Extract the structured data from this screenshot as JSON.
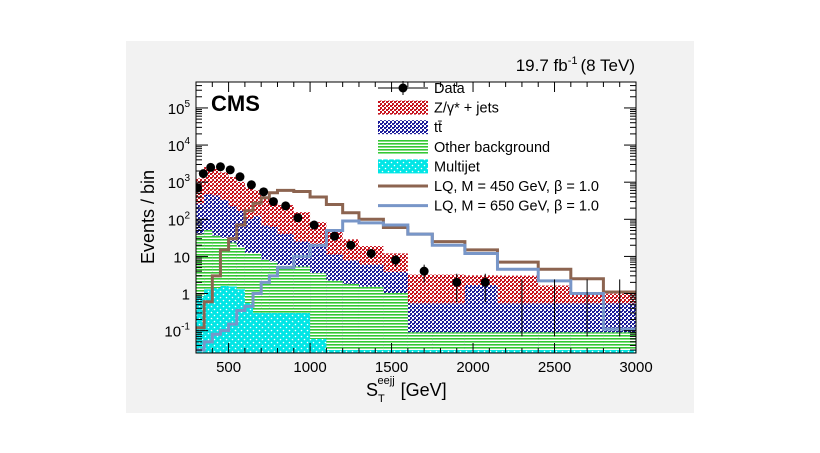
{
  "colors": {
    "zjets": "#c8141e",
    "ttbar": "#1e1e9b",
    "other": "#34c834",
    "multijet": "#00e6e6",
    "lq450": "#8c6450",
    "lq650": "#7896c8",
    "panel": "#f2f2f2"
  },
  "chart_data": {
    "type": "histogram",
    "title": "",
    "lumi_label": "19.7 fb",
    "lumi_sup": "-1",
    "energy_label": "(8 TeV)",
    "experiment": "CMS",
    "xlabel_main": "S",
    "xlabel_sub": "T",
    "xlabel_sup": "eejj",
    "xlabel_unit": "[GeV]",
    "ylabel": "Events / bin",
    "xlim": [
      300,
      3000
    ],
    "ylim": [
      0.025,
      500000
    ],
    "yscale": "log",
    "x_ticks": [
      "500",
      "1000",
      "1500",
      "2000",
      "2500",
      "3000"
    ],
    "y_ticks": [
      {
        "base": "10",
        "exp": "5"
      },
      {
        "base": "10",
        "exp": "4"
      },
      {
        "base": "10",
        "exp": "3"
      },
      {
        "base": "10",
        "exp": "2"
      },
      {
        "base": "10",
        "exp": ""
      },
      {
        "base": "1",
        "exp": ""
      },
      {
        "base": "10",
        "exp": "-1"
      }
    ],
    "bin_edges": [
      300,
      350,
      400,
      450,
      500,
      550,
      600,
      650,
      700,
      750,
      800,
      900,
      1000,
      1100,
      1200,
      1300,
      1450,
      1600,
      1750,
      1950,
      2150,
      2400,
      2600,
      2800,
      3000
    ],
    "stack": {
      "multijet": [
        0.85,
        1.3,
        1.4,
        1.6,
        1.55,
        1.3,
        0.55,
        0.3,
        0.3,
        0.3,
        0.3,
        0.3,
        0.06,
        0.03,
        0.03,
        0.03,
        0.03,
        0.03,
        0.03,
        0.03,
        0.03,
        0.03,
        0.03,
        0.03
      ],
      "other": [
        40,
        50,
        35,
        30,
        22,
        17,
        12,
        12,
        8,
        7,
        5.5,
        5,
        3.5,
        2.2,
        1.8,
        1.5,
        1.0,
        0.06,
        0.06,
        0.06,
        0.06,
        0.06,
        0.06,
        0.06
      ],
      "ttbar": [
        220,
        420,
        400,
        300,
        200,
        150,
        90,
        110,
        60,
        55,
        35,
        20,
        15,
        9,
        6,
        4.5,
        2.8,
        0.45,
        0.45,
        1.6,
        0.45,
        0.45,
        0.45,
        0.45
      ],
      "zjets": [
        1000,
        2100,
        1850,
        1500,
        1150,
        850,
        620,
        480,
        340,
        260,
        200,
        130,
        65,
        35,
        21,
        13,
        8.2,
        2.7,
        2.7,
        1.4,
        2.5,
        1.1,
        0.45,
        0.45
      ]
    },
    "series": [
      {
        "name": "Data",
        "x": [
          310,
          345,
          390,
          450,
          510,
          570,
          640,
          715,
          775,
          850,
          925,
          1025,
          1150,
          1250,
          1375,
          1525,
          1700,
          1900,
          2075
        ],
        "y": [
          700,
          1700,
          2500,
          2600,
          2150,
          1400,
          850,
          550,
          300,
          230,
          110,
          70,
          35,
          20,
          12,
          8,
          4,
          2,
          2
        ]
      },
      {
        "name": "LQ, M = 450 GeV, β = 1.0",
        "x": [
          300,
          350,
          400,
          450,
          500,
          550,
          600,
          650,
          700,
          750,
          800,
          900,
          1000,
          1100,
          1200,
          1300,
          1450,
          1600,
          1750,
          1950,
          2150,
          2400,
          2600,
          2800,
          3000
        ],
        "y": [
          0.12,
          0.6,
          3,
          15,
          30,
          70,
          170,
          270,
          380,
          520,
          600,
          560,
          400,
          250,
          150,
          100,
          60,
          40,
          25,
          15,
          7,
          4.5,
          2.5,
          1.1,
          0.18
        ]
      },
      {
        "name": "LQ, M = 650 GeV, β = 1.0",
        "x": [
          300,
          350,
          400,
          450,
          500,
          550,
          600,
          650,
          700,
          750,
          800,
          900,
          1000,
          1100,
          1200,
          1300,
          1450,
          1600,
          1750,
          1950,
          2150,
          2400,
          2600,
          2800,
          3000
        ],
        "y": [
          0.03,
          0.05,
          0.08,
          0.1,
          0.15,
          0.35,
          0.45,
          1.0,
          2.0,
          3.0,
          5.0,
          10,
          20,
          50,
          90,
          80,
          70,
          40,
          20,
          12,
          4.5,
          2.2,
          1.0,
          0.11,
          0.11
        ]
      }
    ],
    "legend": [
      {
        "label": "Data",
        "style": "marker"
      },
      {
        "label": "Z/γ* + jets",
        "style": "zjets"
      },
      {
        "label": "tt̄",
        "style": "ttbar"
      },
      {
        "label": "Other background",
        "style": "other"
      },
      {
        "label": "Multijet",
        "style": "multijet"
      },
      {
        "label": "LQ, M = 450 GeV, β = 1.0",
        "style": "lq450"
      },
      {
        "label": "LQ, M = 650 GeV, β = 1.0",
        "style": "lq650"
      }
    ],
    "legend_position": "top-right"
  }
}
